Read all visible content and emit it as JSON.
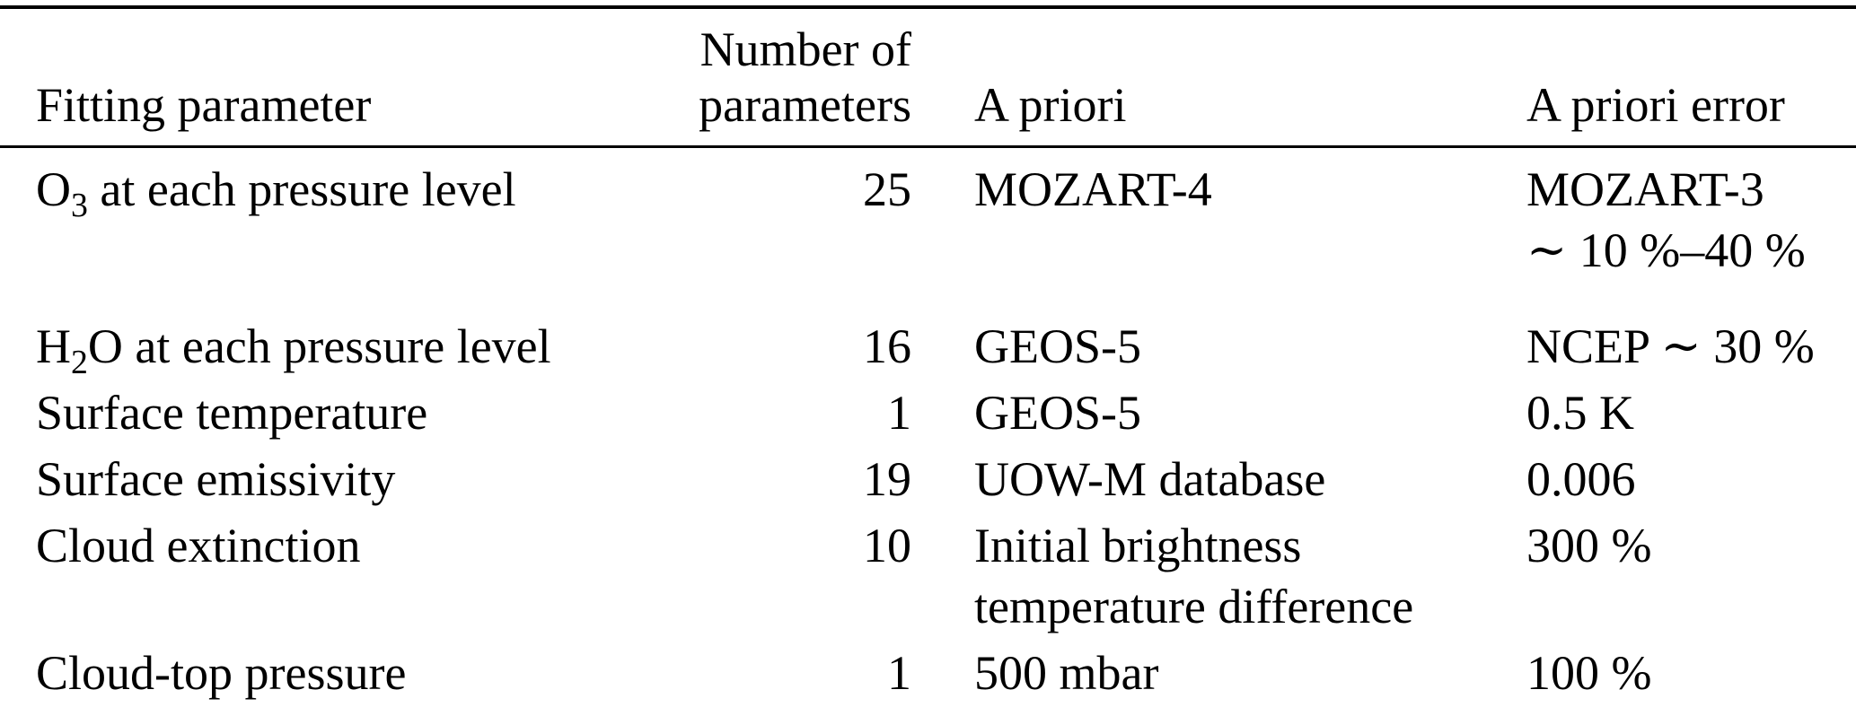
{
  "table": {
    "headers": {
      "col1": "Fitting parameter",
      "col2_line1": "Number of",
      "col2_line2": "parameters",
      "col3": "A priori",
      "col4": "A priori error"
    },
    "rows": [
      {
        "param_pre": "O",
        "param_sub": "3",
        "param_post": " at each pressure level",
        "n": "25",
        "apriori": [
          "MOZART-4"
        ],
        "error": [
          "MOZART-3",
          "∼ 10 %–40 %"
        ]
      },
      {
        "param_pre": "H",
        "param_sub": "2",
        "param_post": "O at each pressure level",
        "n": "16",
        "apriori": [
          "GEOS-5"
        ],
        "error": [
          "NCEP ∼ 30 %"
        ]
      },
      {
        "param_pre": "Surface temperature",
        "param_sub": "",
        "param_post": "",
        "n": "1",
        "apriori": [
          "GEOS-5"
        ],
        "error": [
          "0.5 K"
        ]
      },
      {
        "param_pre": "Surface emissivity",
        "param_sub": "",
        "param_post": "",
        "n": "19",
        "apriori": [
          "UOW-M database"
        ],
        "error": [
          "0.006"
        ]
      },
      {
        "param_pre": "Cloud extinction",
        "param_sub": "",
        "param_post": "",
        "n": "10",
        "apriori": [
          "Initial brightness",
          "temperature difference"
        ],
        "error": [
          "300 %"
        ]
      },
      {
        "param_pre": "Cloud-top pressure",
        "param_sub": "",
        "param_post": "",
        "n": "1",
        "apriori": [
          "500 mbar"
        ],
        "error": [
          "100 %"
        ]
      }
    ]
  }
}
